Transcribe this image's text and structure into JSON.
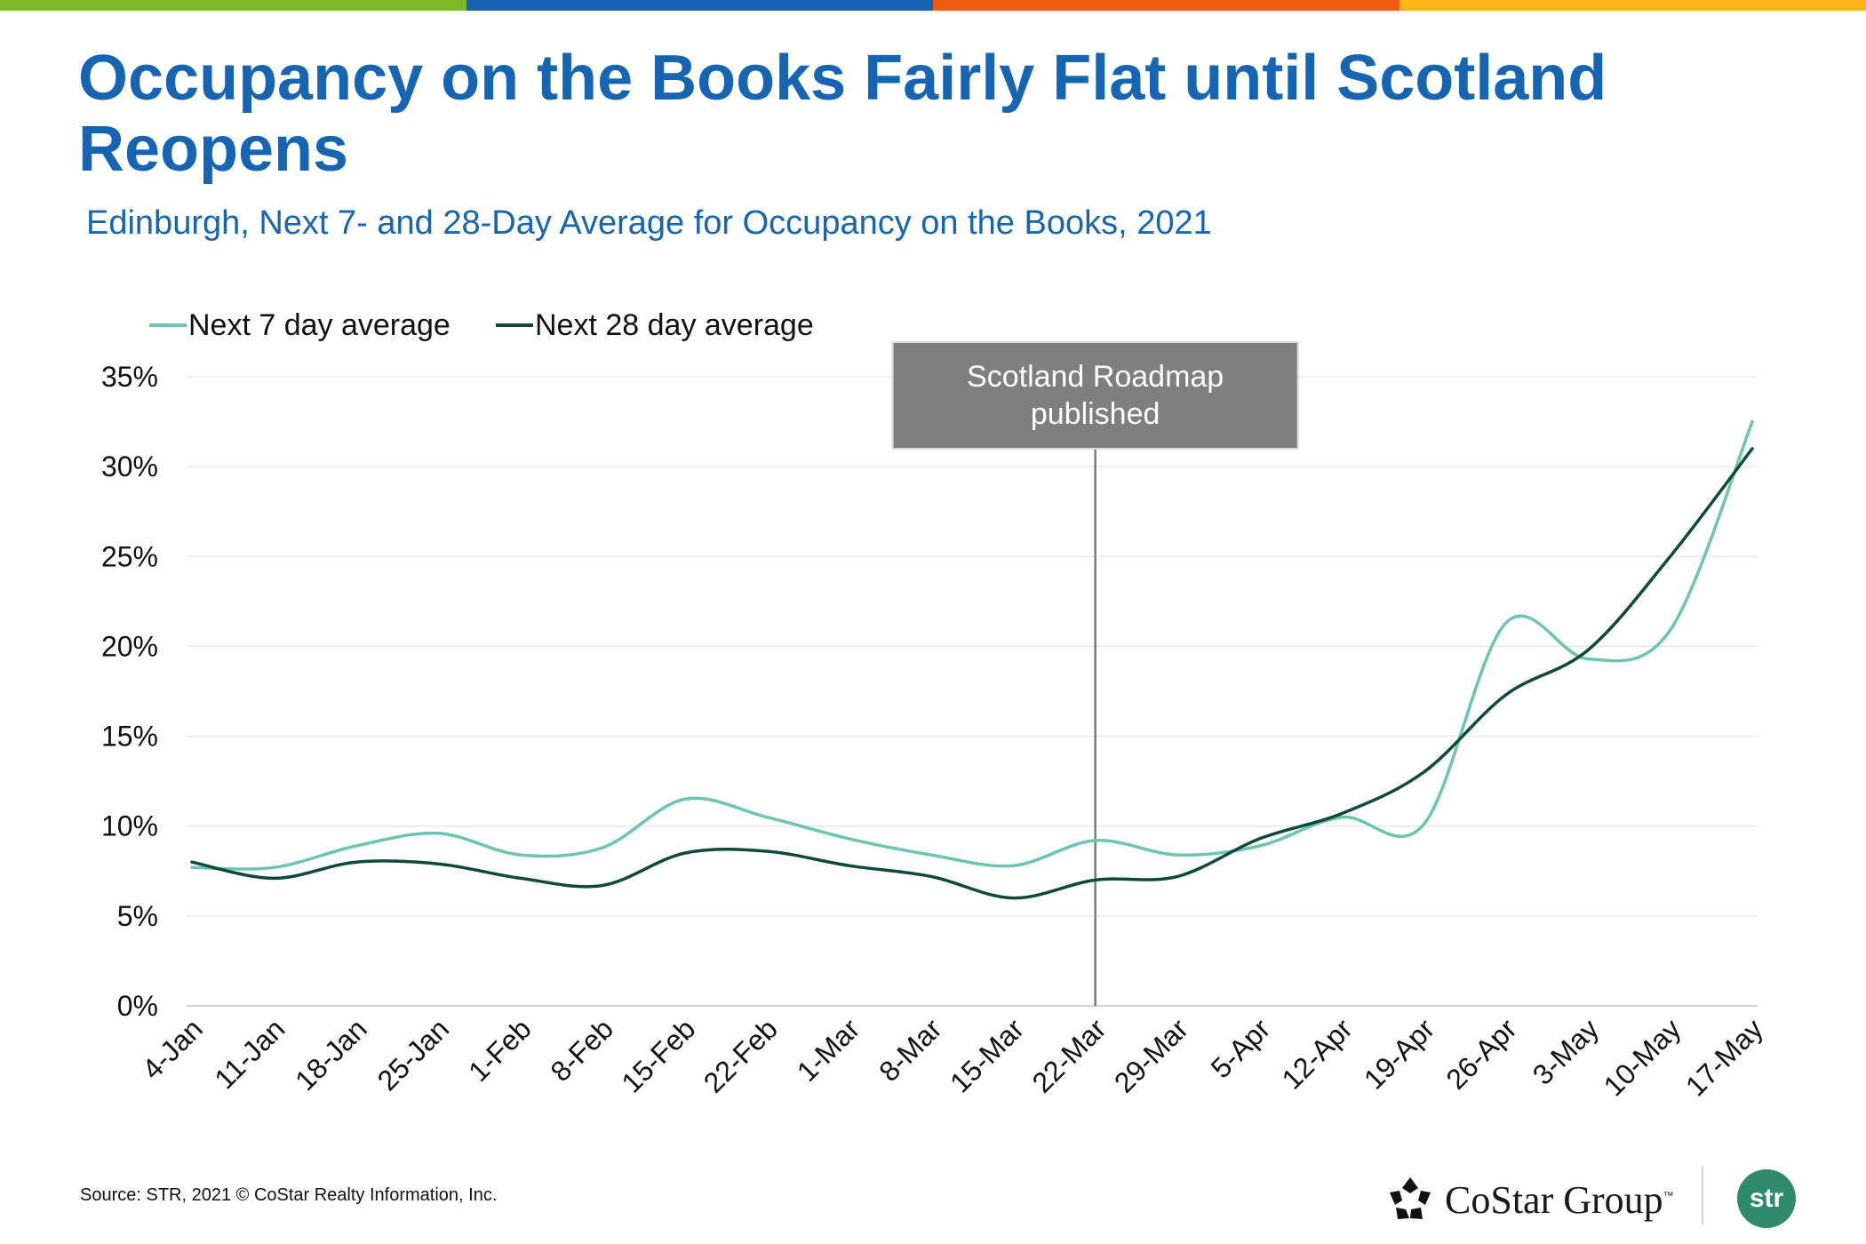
{
  "header": {
    "title": "Occupancy on the Books Fairly Flat until Scotland Reopens",
    "subtitle": "Edinburgh, Next 7- and 28-Day Average for Occupancy on the Books, 2021"
  },
  "brand_colors": [
    "#7cb829",
    "#1565b4",
    "#f05a12",
    "#fbb417"
  ],
  "chart_data": {
    "type": "line",
    "categories": [
      "4-Jan",
      "11-Jan",
      "18-Jan",
      "25-Jan",
      "1-Feb",
      "8-Feb",
      "15-Feb",
      "22-Feb",
      "1-Mar",
      "8-Mar",
      "15-Mar",
      "22-Mar",
      "29-Mar",
      "5-Apr",
      "12-Apr",
      "19-Apr",
      "26-Apr",
      "3-May",
      "10-May",
      "17-May"
    ],
    "series": [
      {
        "name": "Next 7 day average",
        "color": "#6cc5b2",
        "values": [
          7.7,
          7.7,
          8.9,
          9.6,
          8.4,
          8.8,
          11.5,
          10.5,
          9.3,
          8.4,
          7.8,
          9.2,
          8.4,
          8.9,
          10.5,
          10.1,
          21.3,
          19.3,
          20.9,
          32.5
        ]
      },
      {
        "name": "Next 28 day average",
        "color": "#0d4a3a",
        "values": [
          8.0,
          7.1,
          8.0,
          7.9,
          7.1,
          6.7,
          8.5,
          8.6,
          7.8,
          7.2,
          6.0,
          7.0,
          7.2,
          9.3,
          10.7,
          13.0,
          17.3,
          19.8,
          25.0,
          31.0
        ]
      }
    ],
    "yticks": [
      "0%",
      "5%",
      "10%",
      "15%",
      "20%",
      "25%",
      "30%",
      "35%"
    ],
    "ylim": [
      0,
      35
    ],
    "xlabel": "",
    "ylabel": "",
    "legend": "top-left",
    "grid": true,
    "annotation": {
      "text_lines": [
        "Scotland Roadmap",
        "published"
      ],
      "x_category": "22-Mar"
    }
  },
  "footer": {
    "source": "Source: STR, 2021 © CoStar Realty Information, Inc.",
    "costar_logo_text": "CoStar Group",
    "costar_tm": "™",
    "str_badge": "str"
  }
}
